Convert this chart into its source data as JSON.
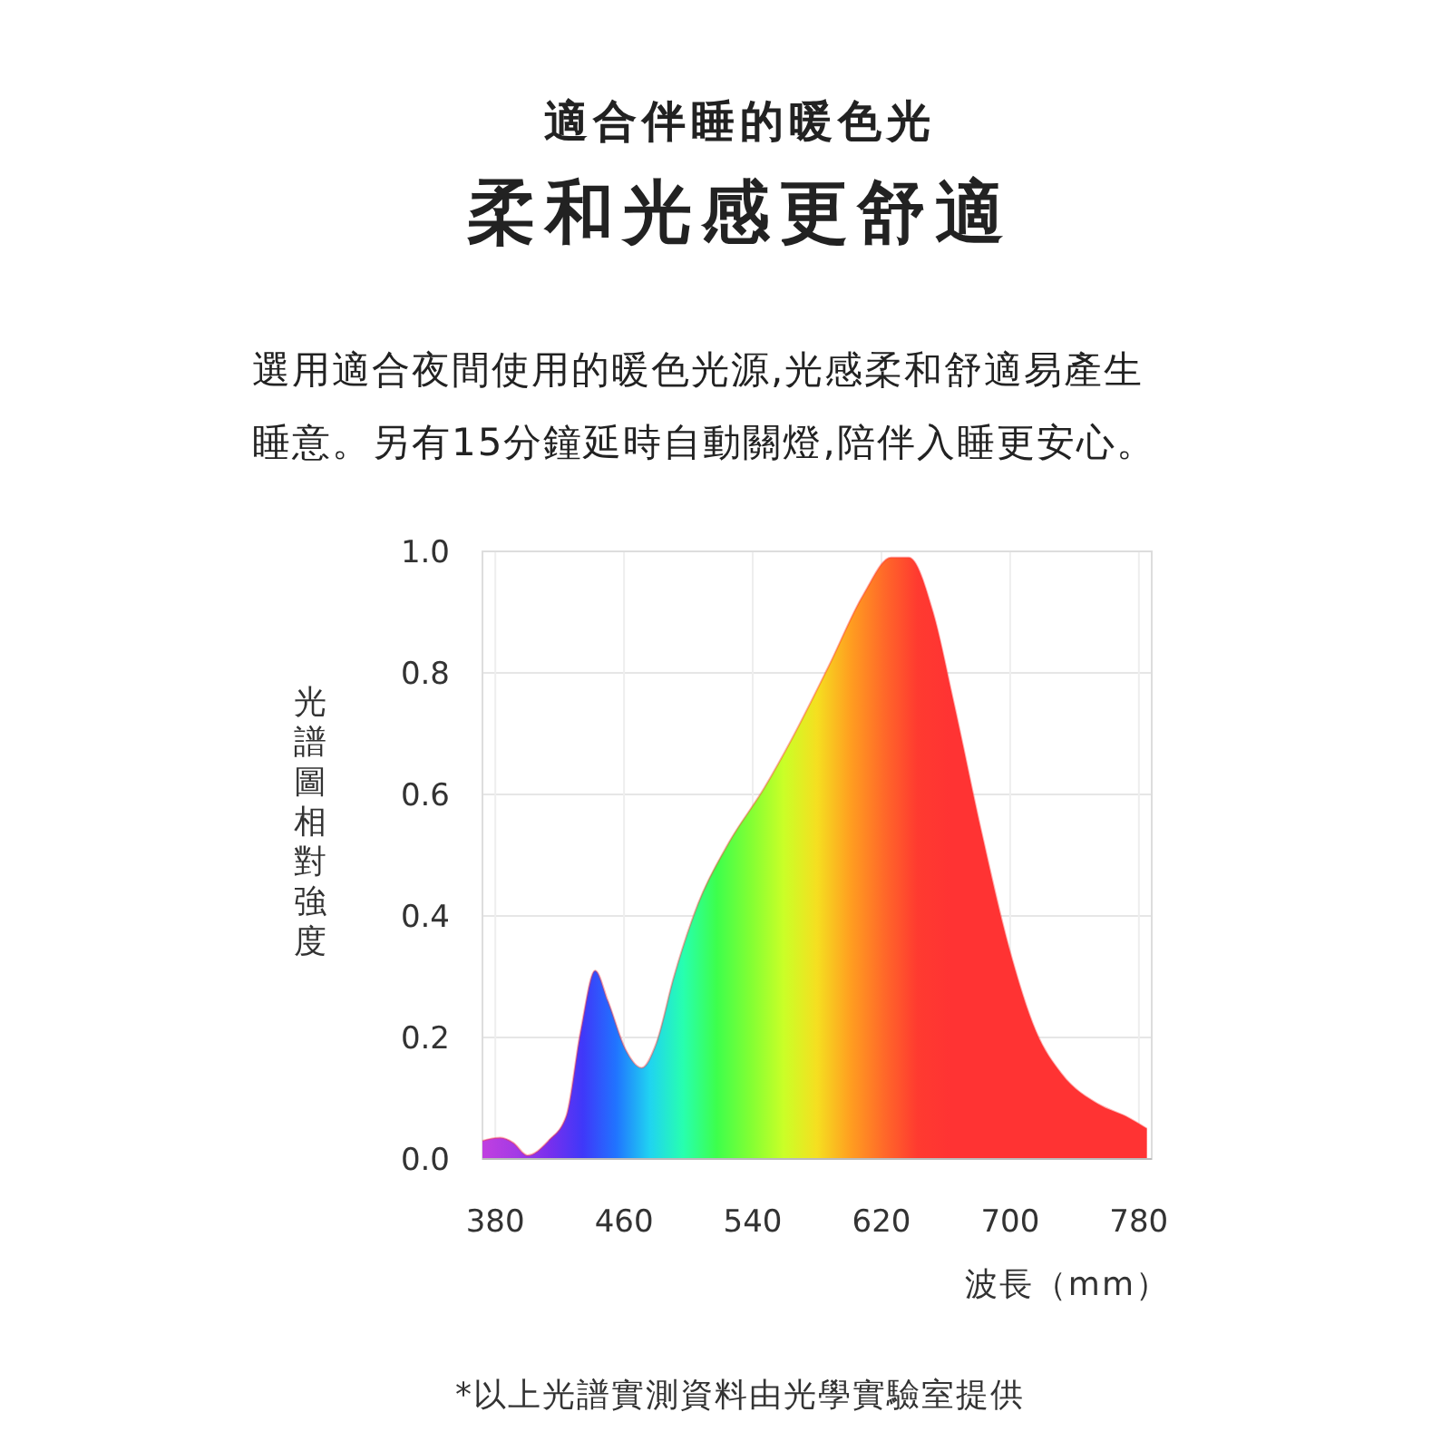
{
  "chart_data": {
    "type": "area",
    "title": "適合伴睡的暖色光",
    "subtitle": "柔和光感更舒適",
    "annotations": [
      "選用適合夜間使用的暖色光源,光感柔和舒適易產生睡意。另有15分鐘延時自動關燈,陪伴入睡更安心。",
      "*以上光譜實測資料由光學實驗室提供"
    ],
    "ylabel": "光譜圖相對強度",
    "xlabel": "波長（mm）",
    "x": [
      372,
      383,
      391,
      400,
      413,
      424,
      433,
      442,
      450,
      461,
      471,
      480,
      491,
      506,
      525,
      547,
      564,
      587,
      609,
      626,
      637,
      652,
      665,
      682,
      699,
      716,
      732,
      755,
      772,
      785
    ],
    "series": [
      {
        "color": "#ff3333",
        "values": [
          0.03,
          0.035,
          0.027,
          0.006,
          0.03,
          0.07,
          0.21,
          0.31,
          0.26,
          0.18,
          0.15,
          0.19,
          0.3,
          0.42,
          0.52,
          0.61,
          0.69,
          0.81,
          0.93,
          0.99,
          0.99,
          0.9,
          0.75,
          0.54,
          0.35,
          0.21,
          0.14,
          0.09,
          0.07,
          0.05
        ]
      }
    ],
    "xlim": [
      372,
      788
    ],
    "ylim": [
      0,
      1
    ],
    "xticks": [
      380,
      460,
      540,
      620,
      700,
      780
    ],
    "yticks": [
      {
        "value": 0,
        "label": "0.0"
      },
      {
        "value": 0.2,
        "label": "0.2"
      },
      {
        "value": 0.4,
        "label": "0.4"
      },
      {
        "value": 0.6,
        "label": "0.6"
      },
      {
        "value": 0.8,
        "label": "0.8"
      },
      {
        "value": 1,
        "label": "1.0"
      }
    ],
    "grid": true
  }
}
